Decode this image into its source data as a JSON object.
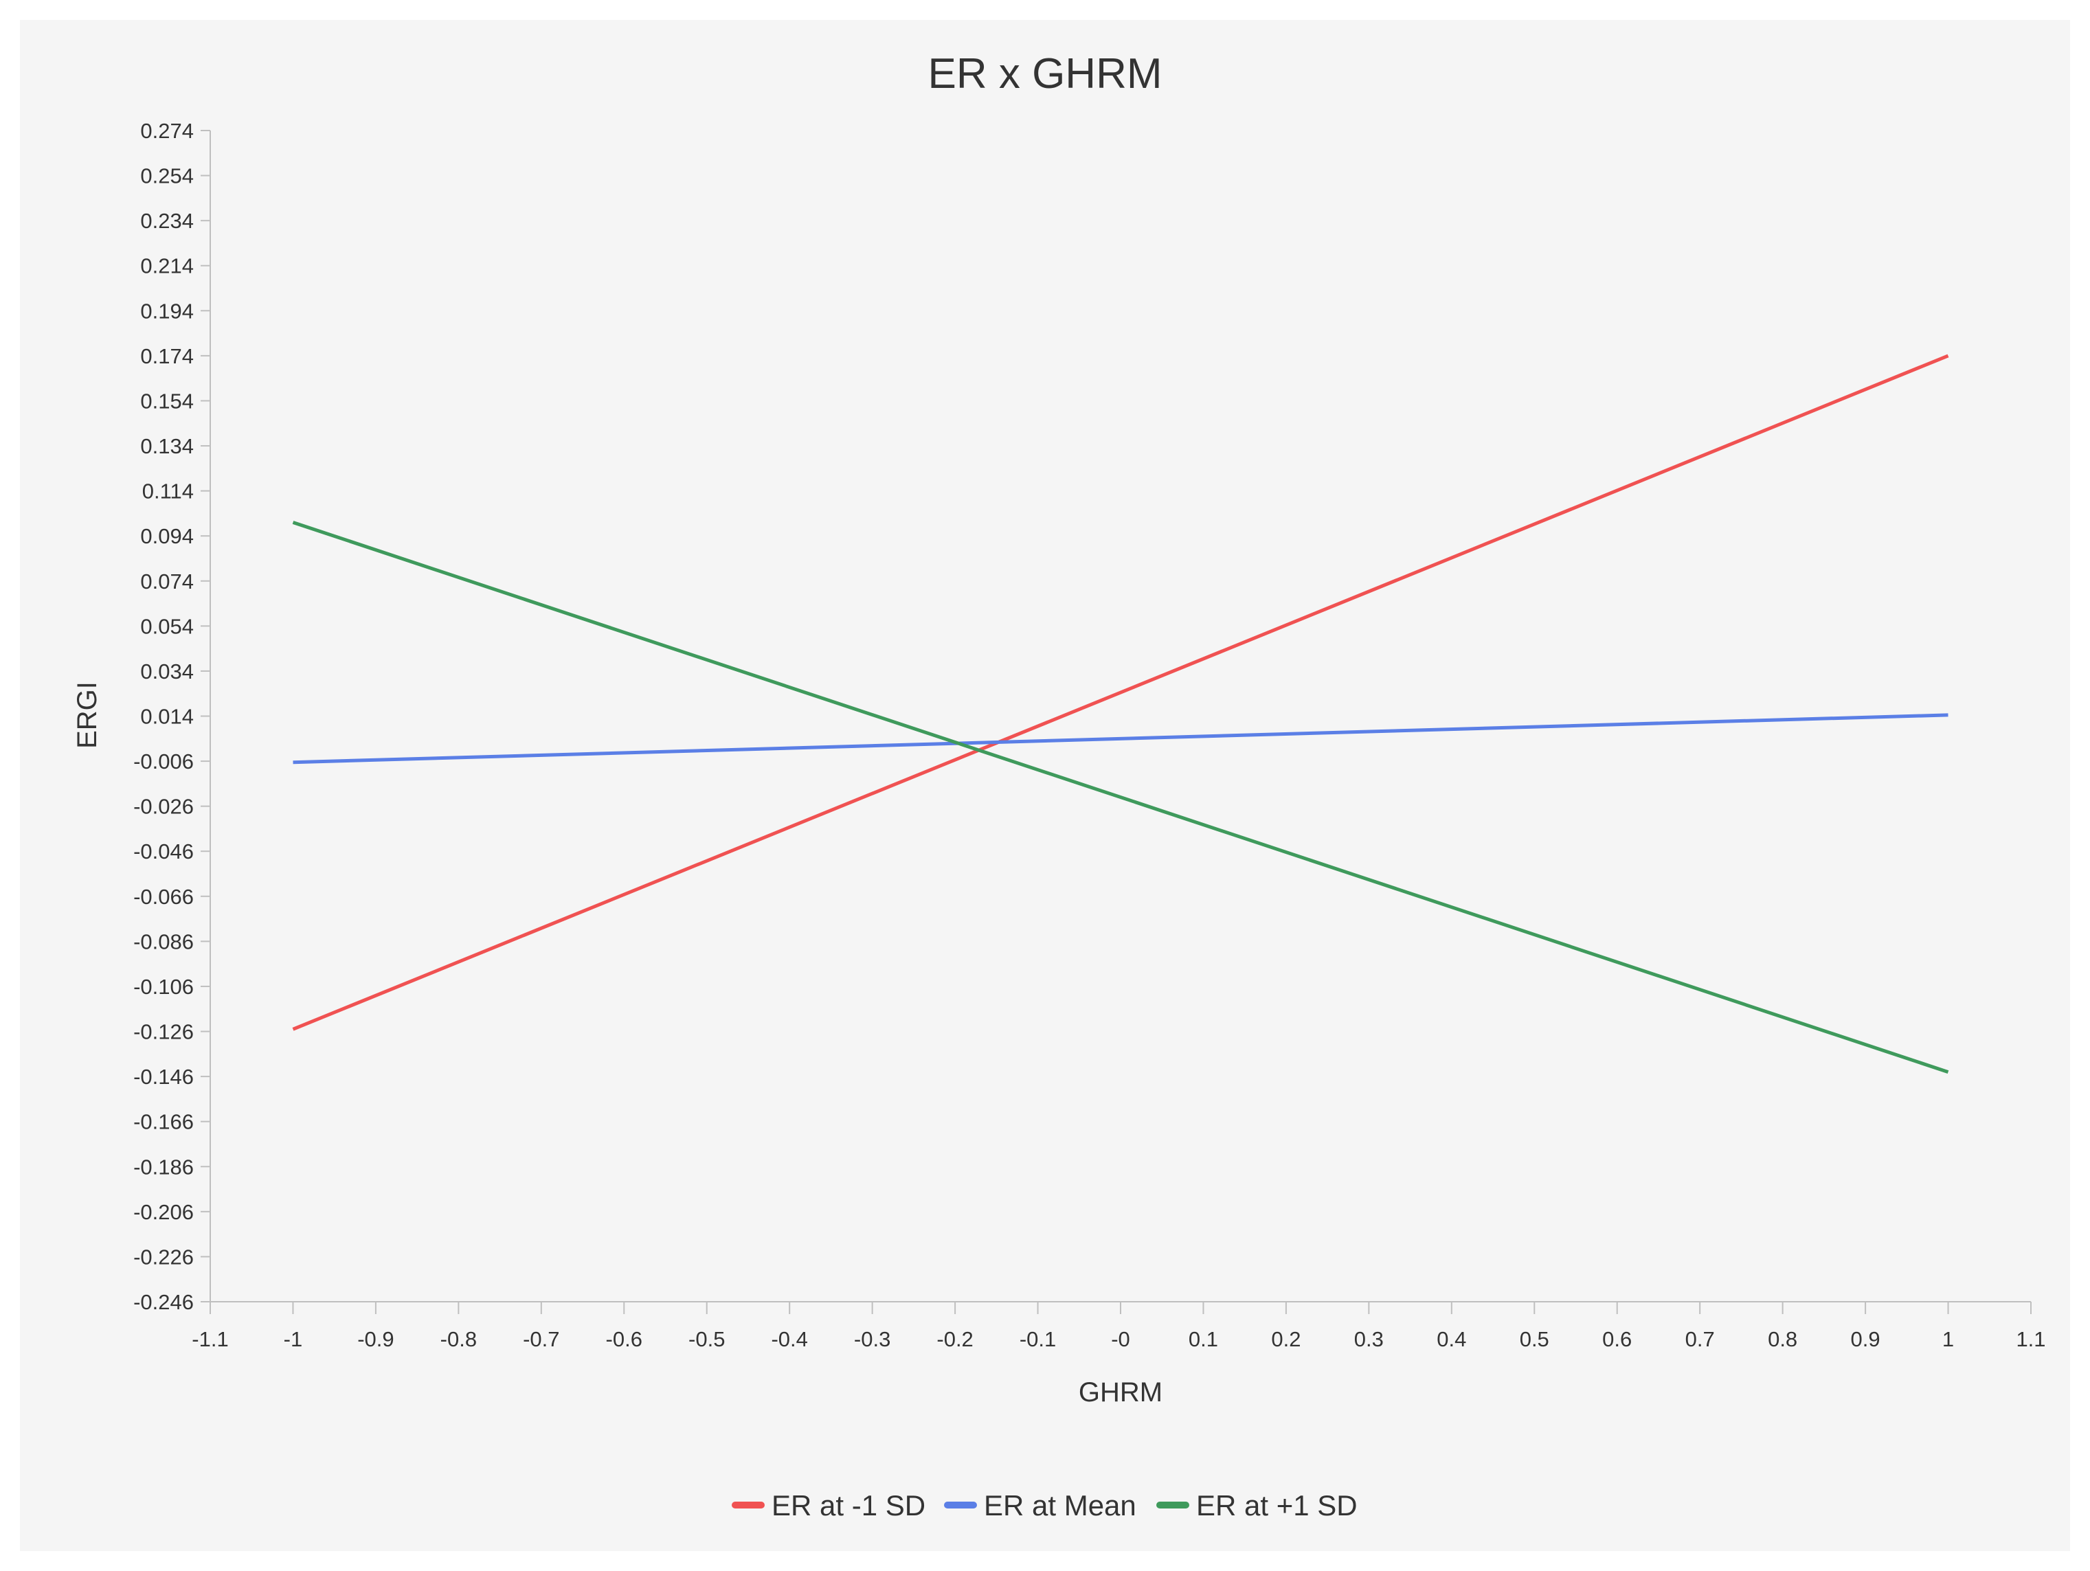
{
  "chart_data": {
    "type": "line",
    "title": "ER x GHRM",
    "xlabel": "GHRM",
    "ylabel": "ERGI",
    "xlim": [
      -1.1,
      1.1
    ],
    "ylim": [
      -0.246,
      0.274
    ],
    "x_ticks": [
      "-1.1",
      "-1",
      "-0.9",
      "-0.8",
      "-0.7",
      "-0.6",
      "-0.5",
      "-0.4",
      "-0.3",
      "-0.2",
      "-0.1",
      "-0",
      "0.1",
      "0.2",
      "0.3",
      "0.4",
      "0.5",
      "0.6",
      "0.7",
      "0.8",
      "0.9",
      "1",
      "1.1"
    ],
    "y_ticks": [
      "0.274",
      "0.254",
      "0.234",
      "0.214",
      "0.194",
      "0.174",
      "0.154",
      "0.134",
      "0.114",
      "0.094",
      "0.074",
      "0.054",
      "0.034",
      "0.014",
      "-0.006",
      "-0.026",
      "-0.046",
      "-0.066",
      "-0.086",
      "-0.106",
      "-0.126",
      "-0.146",
      "-0.166",
      "-0.186",
      "-0.206",
      "-0.226",
      "-0.246"
    ],
    "grid": false,
    "legend_position": "bottom-center",
    "series": [
      {
        "name": "ER at -1 SD",
        "color": "#f05252",
        "x": [
          -1,
          1
        ],
        "y": [
          -0.125,
          0.174
        ]
      },
      {
        "name": "ER at Mean",
        "color": "#5b7fe6",
        "x": [
          -1,
          1
        ],
        "y": [
          -0.0065,
          0.0145
        ]
      },
      {
        "name": "ER at +1 SD",
        "color": "#3f9a5c",
        "x": [
          -1,
          1
        ],
        "y": [
          0.1,
          -0.144
        ]
      }
    ]
  }
}
